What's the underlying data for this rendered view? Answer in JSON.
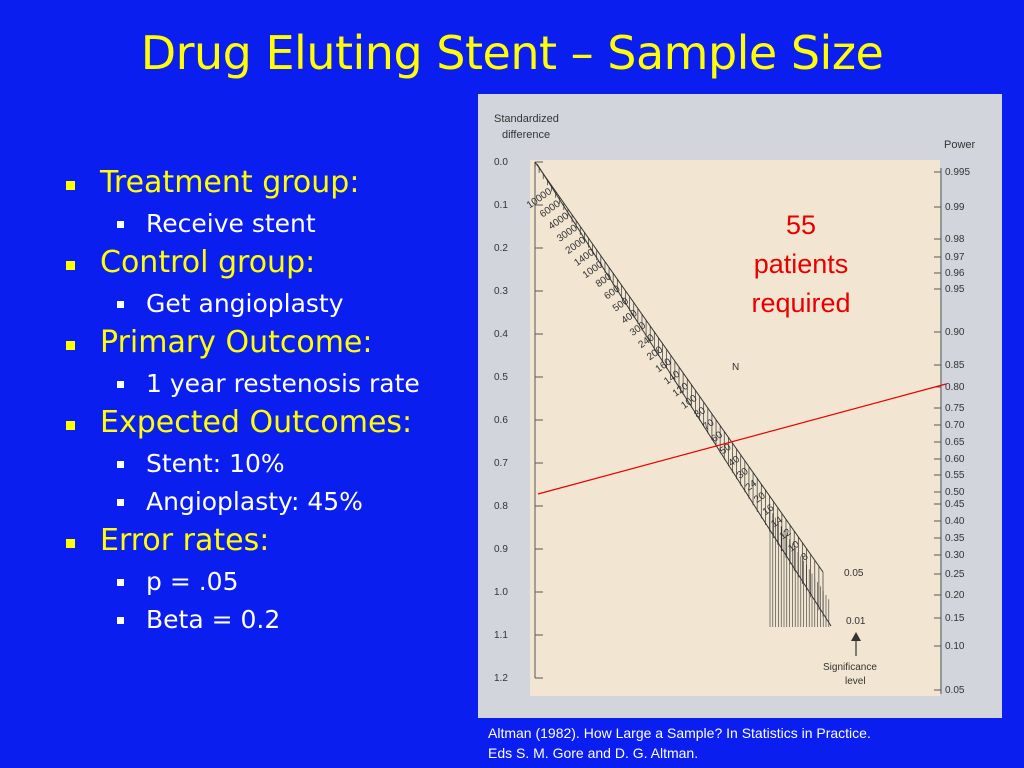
{
  "title": "Drug Eluting Stent – Sample Size",
  "bullets": [
    {
      "label": "Treatment group:",
      "sub": [
        "Receive stent"
      ]
    },
    {
      "label": "Control group:",
      "sub": [
        "Get angioplasty"
      ]
    },
    {
      "label": "Primary Outcome:",
      "sub": [
        "1 year restenosis rate"
      ]
    },
    {
      "label": "Expected Outcomes:",
      "sub": [
        "Stent: 10%",
        "Angioplasty: 45%"
      ]
    },
    {
      "label": "Error rates:",
      "sub": [
        "p = .05",
        "Beta = 0.2"
      ]
    }
  ],
  "nomogram": {
    "left_axis_title": [
      "Standardized",
      "difference"
    ],
    "right_axis_title": "Power",
    "n_label": "N",
    "left_ticks": [
      "0.0",
      "0.1",
      "0.2",
      "0.3",
      "0.4",
      "0.5",
      "0.6",
      "0.7",
      "0.8",
      "0.9",
      "1.0",
      "1.1",
      "1.2"
    ],
    "right_ticks": [
      "0.995",
      "0.99",
      "0.98",
      "0.97",
      "0.96",
      "0.95",
      "0.90",
      "0.85",
      "0.80",
      "0.75",
      "0.70",
      "0.65",
      "0.60",
      "0.55",
      "0.50",
      "0.45",
      "0.40",
      "0.35",
      "0.30",
      "0.25",
      "0.20",
      "0.15",
      "0.10",
      "0.05"
    ],
    "n_values": [
      "10000",
      "6000",
      "4000",
      "3000",
      "2000",
      "1400",
      "1000",
      "800",
      "600",
      "500",
      "400",
      "300",
      "240",
      "200",
      "160",
      "140",
      "120",
      "100",
      "80",
      "70",
      "60",
      "50",
      "40",
      "30",
      "24",
      "20",
      "16",
      "14",
      "12",
      "10",
      "8"
    ],
    "sig_values": [
      "0.05",
      "0.01"
    ],
    "sig_label": [
      "Significance",
      "level"
    ],
    "line_color": "#e80000",
    "background": "#f2e6d2"
  },
  "callout": [
    "55",
    "patients",
    "required"
  ],
  "citation": [
    "Altman (1982). How Large a Sample? In Statistics in Practice.",
    "Eds S. M. Gore and D. G. Altman."
  ]
}
